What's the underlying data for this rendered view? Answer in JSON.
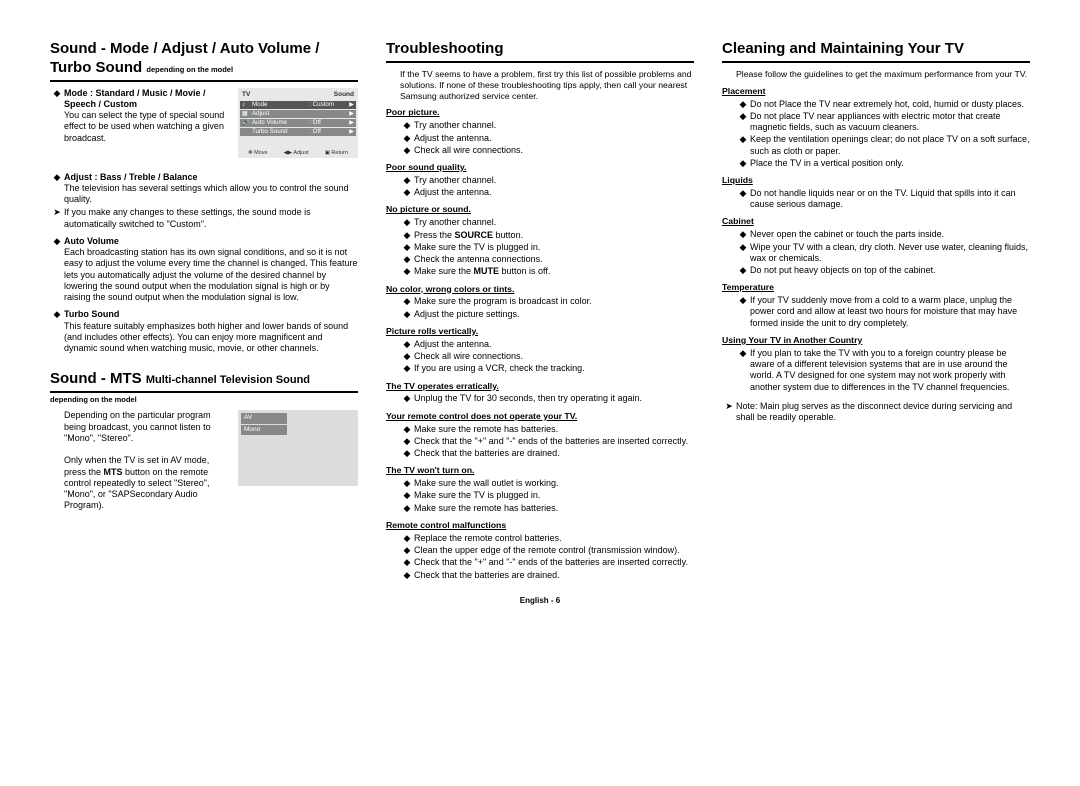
{
  "col1": {
    "h1a": "Sound - Mode / Adjust / Auto Volume /",
    "h1b": "Turbo Sound",
    "h1dep": " depending on the model",
    "mode_head": "Mode : Standard / Music / Movie / Speech / Custom",
    "mode_body": "You can select the type of special sound effect to be used when watching a given broadcast.",
    "adj_head": "Adjust : Bass / Treble / Balance",
    "adj_body": "The television has several settings which allow you to control the sound quality.",
    "adj_note": "If you make any changes to these settings, the sound mode is automatically switched to \"Custom\".",
    "av_head": "Auto Volume",
    "av_body": "Each broadcasting station has its own signal conditions, and so it is not easy to adjust the volume every time the channel is changed. This feature lets you automatically adjust the volume of the desired channel by lowering the sound output when the modulation signal is high or by raising the sound output when the modulation signal is low.",
    "ts_head": "Turbo Sound",
    "ts_body": "This feature suitably emphasizes both higher and lower bands of sound (and includes other effects). You can enjoy more magnificent and dynamic sound when watching music, movie, or other channels.",
    "h2a": "Sound - MTS",
    "h2b": " Multi-channel Television Sound",
    "h2dep": "depending on the model",
    "mts_body1": "Depending on the particular program being broadcast, you cannot listen to \"Mono\", \"Stereo\".",
    "mts_body2": "Only when the TV is set in AV mode, press the ",
    "mts_bold": "MTS",
    "mts_body3": " button on the remote control repeatedly to select \"Stereo\", \"Mono\", or \"SAPSecondary Audio Program).",
    "osd": {
      "tv": "TV",
      "sound": "Sound",
      "mode": "Mode",
      "modeval": ": Custom",
      "adjust": "Adjust",
      "autov": "Auto Volume",
      "off1": ": Off",
      "turbo": "Turbo Sound",
      "off2": ": Off",
      "move": "Move",
      "adj": "Adjust",
      "ret": "Return"
    },
    "osd2": {
      "av": "AV",
      "mono": "Mono"
    }
  },
  "col2": {
    "title": "Troubleshooting",
    "intro": "If the TV seems to have a problem, first try this list of possible problems and solutions. If none of these troubleshooting tips apply, then call your nearest Samsung authorized service center.",
    "groups": [
      {
        "h": "Poor picture.",
        "items": [
          "Try another channel.",
          "Adjust the antenna.",
          "Check all wire connections."
        ]
      },
      {
        "h": "Poor sound quality.",
        "items": [
          "Try another channel.",
          "Adjust the antenna."
        ]
      },
      {
        "h": "No picture or sound.",
        "items": [
          "Try another channel.",
          "Press the <b>SOURCE</b> button.",
          "Make sure the TV is plugged in.",
          "Check the antenna connections.",
          "Make sure the <b>MUTE</b> button is off."
        ]
      },
      {
        "h": "No color, wrong colors or tints.",
        "items": [
          "Make sure the program is broadcast in color.",
          "Adjust the picture settings."
        ]
      },
      {
        "h": "Picture rolls vertically.",
        "items": [
          "Adjust the antenna.",
          "Check all wire connections.",
          "If you are using a VCR, check the tracking."
        ]
      },
      {
        "h": "The TV operates erratically.",
        "items": [
          "Unplug the TV for 30 seconds, then try operating it again."
        ]
      },
      {
        "h": "Your remote control does not operate your TV.",
        "items": [
          "Make sure the remote has batteries.",
          "Check that the \"+\" and \"-\" ends of the batteries are inserted correctly.",
          "Check that the batteries are drained."
        ]
      },
      {
        "h": "The TV won't turn on.",
        "items": [
          "Make sure the wall outlet is working.",
          "Make sure the TV is plugged in.",
          "Make sure the remote has batteries."
        ]
      },
      {
        "h": "Remote control malfunctions",
        "items": [
          "Replace the remote control batteries.",
          "Clean the upper edge of the remote control (transmission window).",
          "Check that the \"+\" and \"-\" ends of the batteries are inserted correctly.",
          "Check that the batteries are drained."
        ]
      }
    ]
  },
  "col3": {
    "title": "Cleaning and Maintaining Your TV",
    "intro": "Please follow the guidelines to get the maximum performance from your TV.",
    "groups": [
      {
        "h": "Placement",
        "items": [
          "Do not Place the TV near extremely hot, cold, humid or dusty places.",
          "Do not place TV near appliances with electric motor that create magnetic fields, such as vacuum cleaners.",
          "Keep the ventilation openings clear; do not place TV on a soft surface, such as cloth or paper.",
          "Place the TV in a vertical position only."
        ]
      },
      {
        "h": "Liquids",
        "items": [
          "Do not handle liquids near or on the TV. Liquid that spills into it can cause serious damage."
        ]
      },
      {
        "h": "Cabinet",
        "items": [
          "Never open the cabinet or touch the parts inside.",
          "Wipe your TV with a clean, dry cloth. Never use water, cleaning fluids, wax or chemicals.",
          "Do not put heavy objects on top of the cabinet."
        ]
      },
      {
        "h": "Temperature",
        "items": [
          "If your TV suddenly move from a cold to a warm place, unplug the power cord and allow at least two hours for moisture that may have formed inside the unit to dry completely."
        ]
      },
      {
        "h": "Using Your TV in Another Country",
        "items": [
          "If you plan to take the TV with you to a foreign country please be aware of a different television systems that are in use around the world. A TV designed for one system may not work properly with another system due to differences in the TV channel frequencies."
        ]
      }
    ],
    "note": "Note: Main plug serves as the disconnect device during servicing and shall be readily operable."
  },
  "footer": "English - 6"
}
